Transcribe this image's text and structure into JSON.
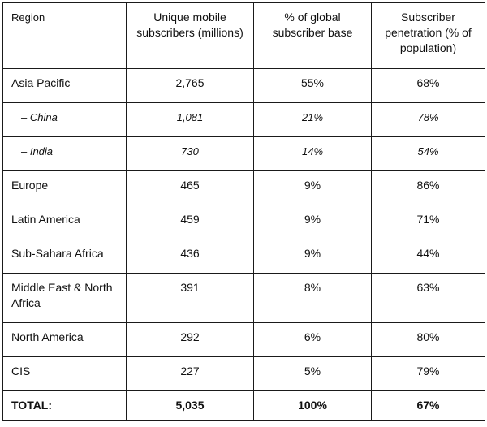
{
  "table": {
    "headers": [
      "Region",
      "Unique mobile subscribers (millions)",
      "% of global subscriber base",
      "Subscriber penetration (% of population)"
    ],
    "rows": [
      {
        "region": "Asia Pacific",
        "subscribers": "2,765",
        "share": "55%",
        "penetration": "68%"
      },
      {
        "region": "– China",
        "subscribers": "1,081",
        "share": "21%",
        "penetration": "78%"
      },
      {
        "region": "– India",
        "subscribers": "730",
        "share": "14%",
        "penetration": "54%"
      },
      {
        "region": "Europe",
        "subscribers": "465",
        "share": "9%",
        "penetration": "86%"
      },
      {
        "region": "Latin America",
        "subscribers": "459",
        "share": "9%",
        "penetration": "71%"
      },
      {
        "region": "Sub-Sahara Africa",
        "subscribers": "436",
        "share": "9%",
        "penetration": "44%"
      },
      {
        "region": "Middle East & North Africa",
        "subscribers": "391",
        "share": "8%",
        "penetration": "63%"
      },
      {
        "region": "North America",
        "subscribers": "292",
        "share": "6%",
        "penetration": "80%"
      },
      {
        "region": "CIS",
        "subscribers": "227",
        "share": "5%",
        "penetration": "79%"
      }
    ],
    "total": {
      "region": "TOTAL:",
      "subscribers": "5,035",
      "share": "100%",
      "penetration": "67%"
    }
  }
}
